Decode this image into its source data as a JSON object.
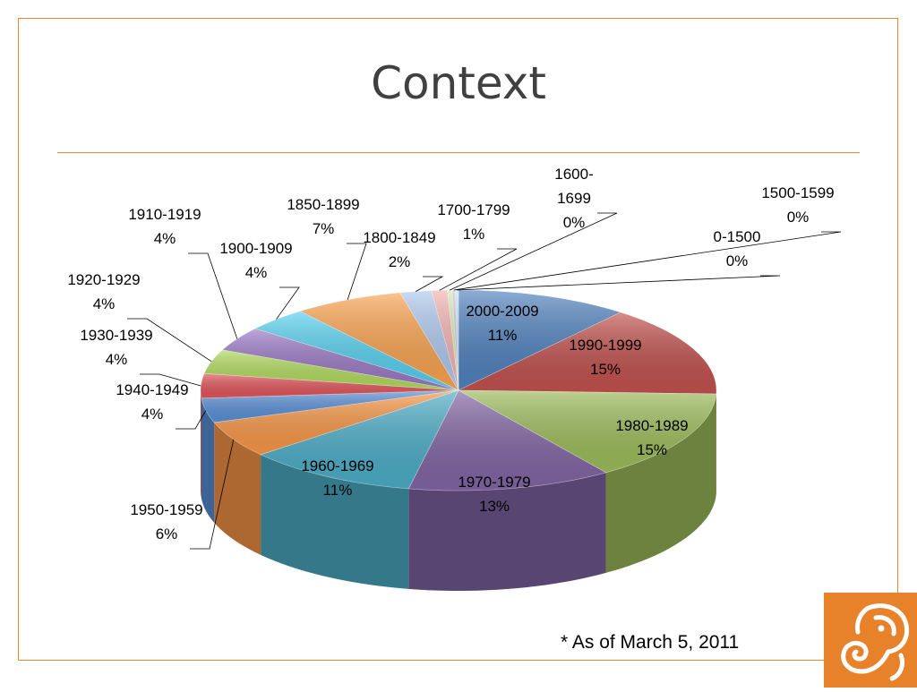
{
  "slide": {
    "title": "Context",
    "footnote": "* As of March 5, 2011"
  },
  "colors": {
    "accent": "#e58a2e",
    "logo": "#e8822a"
  },
  "chart_data": {
    "type": "pie",
    "three_d": true,
    "slices": [
      {
        "label": "2000-2009",
        "percent": "11%",
        "value": 11,
        "color": "#4f81bd"
      },
      {
        "label": "1990-1999",
        "percent": "15%",
        "value": 15,
        "color": "#c0504d"
      },
      {
        "label": "1980-1989",
        "percent": "15%",
        "value": 15,
        "color": "#9bbb59"
      },
      {
        "label": "1970-1979",
        "percent": "13%",
        "value": 13,
        "color": "#8064a2"
      },
      {
        "label": "1960-1969",
        "percent": "11%",
        "value": 11,
        "color": "#4bacc6"
      },
      {
        "label": "1950-1959",
        "percent": "6%",
        "value": 6,
        "color": "#f79646"
      },
      {
        "label": "1940-1949",
        "percent": "4%",
        "value": 4,
        "color": "#5a8fd6"
      },
      {
        "label": "1930-1939",
        "percent": "4%",
        "value": 4,
        "color": "#e0545a"
      },
      {
        "label": "1920-1929",
        "percent": "4%",
        "value": 4,
        "color": "#b0da5c"
      },
      {
        "label": "1910-1919",
        "percent": "4%",
        "value": 4,
        "color": "#9a78c4"
      },
      {
        "label": "1900-1909",
        "percent": "4%",
        "value": 4,
        "color": "#55d0ef"
      },
      {
        "label": "1850-1899",
        "percent": "7%",
        "value": 7,
        "color": "#f9a24e"
      },
      {
        "label": "1800-1849",
        "percent": "2%",
        "value": 2,
        "color": "#aec8ee"
      },
      {
        "label": "1700-1799",
        "percent": "1%",
        "value": 1,
        "color": "#f2b2b0"
      },
      {
        "label": "1600-1699",
        "percent": "0%",
        "value": 0.3,
        "color": "#d6e8b0"
      },
      {
        "label": "1500-1599",
        "percent": "0%",
        "value": 0.2,
        "color": "#cfc2e0"
      },
      {
        "label": "0-1500",
        "percent": "0%",
        "value": 0.2,
        "color": "#bfe6f2"
      }
    ]
  }
}
